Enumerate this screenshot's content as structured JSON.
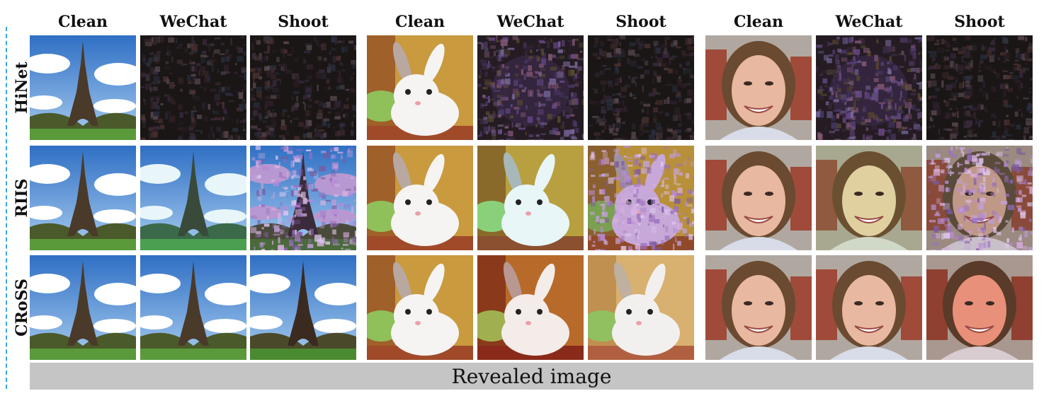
{
  "figure": {
    "column_labels": [
      "Clean",
      "WeChat",
      "Shoot",
      "Clean",
      "WeChat",
      "Shoot",
      "Clean",
      "WeChat",
      "Shoot"
    ],
    "row_labels": [
      "HiNet",
      "RIIS",
      "CRoSS"
    ],
    "footer_label": "Revealed image",
    "subjects": [
      "eiffel-tower",
      "rabbit",
      "woman-face"
    ],
    "accent_colors": {
      "dashed_line": "#3aa6e6",
      "footer_bar": "#c5c5c5"
    },
    "cells": [
      [
        "clean",
        "dark-noise",
        "dark-noise",
        "clean",
        "purple-noise",
        "dark-noise",
        "clean",
        "purple-noise",
        "dark-noise"
      ],
      [
        "clean",
        "cyan-tint",
        "heavy-distortion",
        "clean",
        "cyan-tint",
        "heavy-distortion",
        "clean",
        "yellow-tint",
        "heavy-distortion"
      ],
      [
        "clean",
        "clean",
        "slight-shift",
        "clean",
        "warm-tint",
        "slight-shift",
        "clean",
        "clean",
        "red-tint"
      ]
    ]
  }
}
